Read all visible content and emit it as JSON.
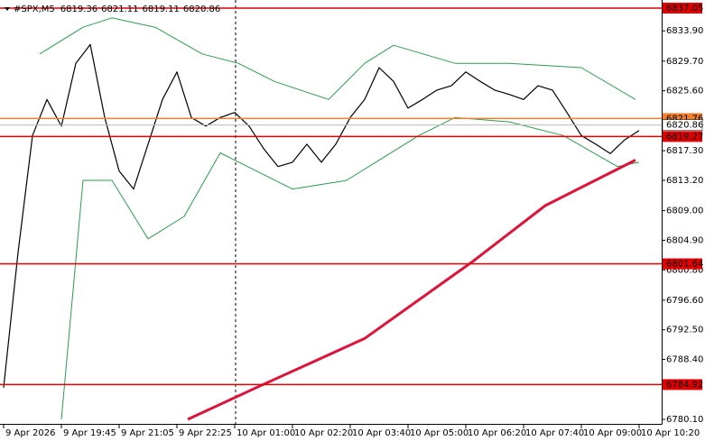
{
  "chart_data": {
    "type": "line",
    "title": "#SPX,M5",
    "ohlc": [
      6819.36,
      6821.11,
      6819.11,
      6820.86
    ],
    "xlim": [
      -1,
      182.25
    ],
    "ylim": [
      6779.48,
      6838.17
    ],
    "xticks": [
      {
        "value": 0,
        "label": "9 Apr 2026"
      },
      {
        "value": 16,
        "label": "9 Apr 19:45"
      },
      {
        "value": 32,
        "label": "9 Apr 21:05"
      },
      {
        "value": 48,
        "label": "9 Apr 22:25"
      },
      {
        "value": 64,
        "label": "10 Apr 01:00"
      },
      {
        "value": 80,
        "label": "10 Apr 02:20"
      },
      {
        "value": 96,
        "label": "10 Apr 03:40"
      },
      {
        "value": 112,
        "label": "10 Apr 05:00"
      },
      {
        "value": 128,
        "label": "10 Apr 06:20"
      },
      {
        "value": 144,
        "label": "10 Apr 07:40"
      },
      {
        "value": 160,
        "label": "10 Apr 09:00"
      },
      {
        "value": 176,
        "label": "10 Apr 10:20"
      }
    ],
    "yticks": [
      {
        "value": 6833.9,
        "label": "6833.90"
      },
      {
        "value": 6829.7,
        "label": "6829.70"
      },
      {
        "value": 6825.6,
        "label": "6825.60"
      },
      {
        "value": 6817.3,
        "label": "6817.30"
      },
      {
        "value": 6813.2,
        "label": "6813.20"
      },
      {
        "value": 6809.0,
        "label": "6809.00"
      },
      {
        "value": 6804.9,
        "label": "6804.90"
      },
      {
        "value": 6800.8,
        "label": "6800.80"
      },
      {
        "value": 6796.6,
        "label": "6796.60"
      },
      {
        "value": 6792.5,
        "label": "6792.50"
      },
      {
        "value": 6788.4,
        "label": "6788.40"
      },
      {
        "value": 6780.1,
        "label": "6780.10"
      }
    ],
    "series": [
      {
        "color": "#000000",
        "width": 1.2,
        "x": [
          0,
          4,
          8,
          12,
          16,
          20,
          24,
          28,
          32,
          36,
          40,
          44,
          48,
          52,
          56,
          60,
          64,
          68,
          72,
          76,
          80,
          84,
          88,
          92,
          96,
          100,
          104,
          108,
          112,
          116,
          120,
          124,
          128,
          132,
          136,
          140,
          144,
          148,
          152,
          156,
          160,
          164,
          168,
          172,
          176
        ],
        "values": [
          6784.5,
          6803.2,
          6819.4,
          6824.4,
          6820.7,
          6829.4,
          6832.0,
          6821.9,
          6814.5,
          6812.0,
          6818.2,
          6824.4,
          6828.2,
          6821.9,
          6820.7,
          6821.9,
          6822.6,
          6820.7,
          6817.6,
          6815.1,
          6815.7,
          6818.2,
          6815.7,
          6818.2,
          6821.9,
          6824.4,
          6828.8,
          6826.9,
          6823.2,
          6824.4,
          6825.7,
          6826.3,
          6828.2,
          6826.9,
          6825.7,
          6825.1,
          6824.4,
          6826.3,
          6825.7,
          6822.6,
          6819.4,
          6818.2,
          6816.9,
          6818.8,
          6820.1
        ]
      },
      {
        "color": "#2e9a4e",
        "width": 1,
        "x": [
          10,
          22,
          30,
          42,
          55,
          65,
          75,
          90,
          100,
          108,
          125,
          140,
          160,
          175
        ],
        "values": [
          6830.7,
          6834.4,
          6835.7,
          6834.4,
          6830.7,
          6829.4,
          6826.9,
          6824.4,
          6829.4,
          6831.9,
          6829.4,
          6829.4,
          6828.8,
          6824.4
        ]
      },
      {
        "color": "#2e9a4e",
        "width": 1,
        "x": [
          16,
          22,
          30,
          40,
          50,
          60,
          70,
          80,
          95,
          105,
          115,
          125,
          140,
          155,
          170,
          176
        ],
        "values": [
          6780.1,
          6813.2,
          6813.2,
          6805.1,
          6808.2,
          6817.0,
          6814.5,
          6812.0,
          6813.2,
          6816.3,
          6819.4,
          6821.9,
          6821.3,
          6819.4,
          6815.1,
          6815.7
        ]
      },
      {
        "color": "#dc143c",
        "width": 3,
        "x": [
          51,
          70,
          100,
          130,
          150,
          175
        ],
        "values": [
          6780.1,
          6784.5,
          6791.3,
          6802.0,
          6809.7,
          6816.0
        ]
      }
    ],
    "levels": [
      {
        "value": 6837.05,
        "color": "#e00000"
      },
      {
        "value": 6821.76,
        "color": "#f08030"
      },
      {
        "value": 6819.27,
        "color": "#e00000"
      },
      {
        "value": 6801.64,
        "color": "#e00000"
      },
      {
        "value": 6784.92,
        "color": "#e00000"
      }
    ]
  }
}
